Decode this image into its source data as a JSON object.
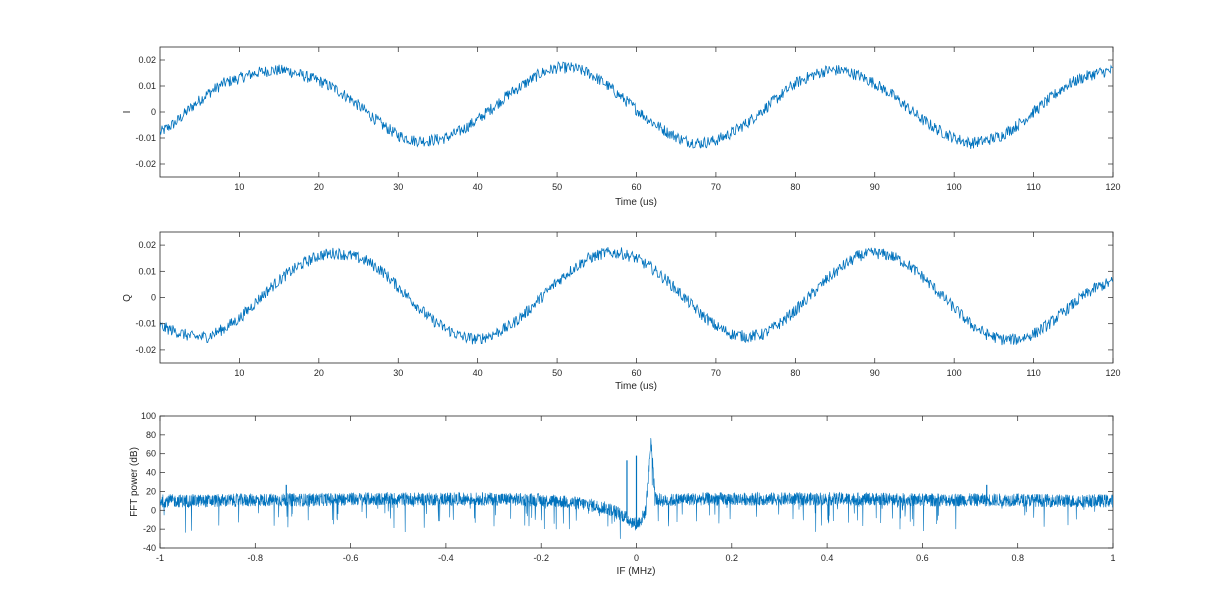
{
  "colors": {
    "background": "#ffffff",
    "axes": "#262626",
    "series": "#0072BD"
  },
  "chart_data": [
    {
      "type": "line",
      "xlabel": "Time (us)",
      "ylabel": "I",
      "xlim": [
        0,
        120
      ],
      "ylim": [
        -0.025,
        0.025
      ],
      "xticks": [
        10,
        20,
        30,
        40,
        50,
        60,
        70,
        80,
        90,
        100,
        110,
        120
      ],
      "xtick_labels": [
        "10",
        "20",
        "30",
        "40",
        "50",
        "60",
        "70",
        "80",
        "90",
        "100",
        "110",
        "120"
      ],
      "yticks": [
        -0.02,
        -0.01,
        0,
        0.01,
        0.02
      ],
      "ytick_labels": [
        "-0.02",
        "-0.01",
        "0",
        "0.01",
        "0.02"
      ],
      "grid": false,
      "series": [
        {
          "x": [
            0,
            2,
            4,
            6,
            8,
            10,
            12,
            14,
            16,
            18,
            20,
            22,
            24,
            26,
            28,
            30,
            32,
            34,
            36,
            38,
            40,
            42,
            44,
            46,
            48,
            50,
            52,
            54,
            56,
            58,
            60,
            62,
            64,
            66,
            68,
            70,
            72,
            74,
            76,
            78,
            80,
            82,
            84,
            86,
            88,
            90,
            92,
            94,
            96,
            98,
            100,
            102,
            104,
            106,
            108,
            110,
            112,
            114,
            116,
            118,
            120
          ],
          "values": [
            -0.008,
            -0.004,
            0.002,
            0.007,
            0.011,
            0.013,
            0.015,
            0.016,
            0.016,
            0.014,
            0.012,
            0.009,
            0.005,
            0.0,
            -0.005,
            -0.009,
            -0.011,
            -0.011,
            -0.01,
            -0.007,
            -0.003,
            0.002,
            0.007,
            0.011,
            0.015,
            0.017,
            0.017,
            0.015,
            0.011,
            0.006,
            0.001,
            -0.004,
            -0.008,
            -0.011,
            -0.012,
            -0.011,
            -0.008,
            -0.004,
            0.001,
            0.006,
            0.011,
            0.014,
            0.016,
            0.016,
            0.014,
            0.011,
            0.007,
            0.002,
            -0.003,
            -0.007,
            -0.01,
            -0.012,
            -0.011,
            -0.009,
            -0.005,
            0.0,
            0.005,
            0.01,
            0.013,
            0.015,
            0.016
          ]
        }
      ]
    },
    {
      "type": "line",
      "xlabel": "Time (us)",
      "ylabel": "Q",
      "xlim": [
        0,
        120
      ],
      "ylim": [
        -0.025,
        0.025
      ],
      "xticks": [
        10,
        20,
        30,
        40,
        50,
        60,
        70,
        80,
        90,
        100,
        110,
        120
      ],
      "xtick_labels": [
        "10",
        "20",
        "30",
        "40",
        "50",
        "60",
        "70",
        "80",
        "90",
        "100",
        "110",
        "120"
      ],
      "yticks": [
        -0.02,
        -0.01,
        0,
        0.01,
        0.02
      ],
      "ytick_labels": [
        "-0.02",
        "-0.01",
        "0",
        "0.01",
        "0.02"
      ],
      "grid": false,
      "series": [
        {
          "x": [
            0,
            2,
            4,
            6,
            8,
            10,
            12,
            14,
            16,
            18,
            20,
            22,
            24,
            26,
            28,
            30,
            32,
            34,
            36,
            38,
            40,
            42,
            44,
            46,
            48,
            50,
            52,
            54,
            56,
            58,
            60,
            62,
            64,
            66,
            68,
            70,
            72,
            74,
            76,
            78,
            80,
            82,
            84,
            86,
            88,
            90,
            92,
            94,
            96,
            98,
            100,
            102,
            104,
            106,
            108,
            110,
            112,
            114,
            116,
            118,
            120
          ],
          "values": [
            -0.011,
            -0.013,
            -0.015,
            -0.015,
            -0.012,
            -0.008,
            -0.002,
            0.004,
            0.009,
            0.013,
            0.016,
            0.017,
            0.016,
            0.014,
            0.01,
            0.004,
            -0.002,
            -0.008,
            -0.012,
            -0.015,
            -0.016,
            -0.014,
            -0.011,
            -0.006,
            0.0,
            0.006,
            0.011,
            0.015,
            0.017,
            0.017,
            0.015,
            0.011,
            0.006,
            0.0,
            -0.006,
            -0.011,
            -0.014,
            -0.015,
            -0.014,
            -0.01,
            -0.005,
            0.001,
            0.007,
            0.012,
            0.016,
            0.017,
            0.016,
            0.013,
            0.008,
            0.002,
            -0.004,
            -0.01,
            -0.014,
            -0.016,
            -0.016,
            -0.014,
            -0.01,
            -0.005,
            0.0,
            0.004,
            0.006
          ]
        }
      ]
    },
    {
      "type": "line",
      "xlabel": "IF (MHz)",
      "ylabel": "FFT power (dB)",
      "xlim": [
        -1,
        1
      ],
      "ylim": [
        -40,
        100
      ],
      "xticks": [
        -1,
        -0.8,
        -0.6,
        -0.4,
        -0.2,
        0,
        0.2,
        0.4,
        0.6,
        0.8,
        1
      ],
      "xtick_labels": [
        "-1",
        "-0.8",
        "-0.6",
        "-0.4",
        "-0.2",
        "0",
        "0.2",
        "0.4",
        "0.6",
        "0.8",
        "1"
      ],
      "yticks": [
        -40,
        -20,
        0,
        20,
        40,
        60,
        80,
        100
      ],
      "ytick_labels": [
        "-40",
        "-20",
        "0",
        "20",
        "40",
        "60",
        "80",
        "100"
      ],
      "grid": false,
      "series": [
        {
          "x": [
            -1.0,
            -0.9,
            -0.8,
            -0.7,
            -0.6,
            -0.5,
            -0.4,
            -0.3,
            -0.2,
            -0.15,
            -0.1,
            -0.07,
            -0.05,
            -0.03,
            -0.01,
            0.0,
            0.01,
            0.02,
            0.03,
            0.04,
            0.06,
            0.1,
            0.2,
            0.3,
            0.4,
            0.5,
            0.6,
            0.7,
            0.8,
            0.9,
            1.0
          ],
          "values": [
            10,
            10,
            11,
            11,
            12,
            12,
            12,
            12,
            11,
            9,
            6,
            3,
            0,
            -5,
            -12,
            -15,
            -10,
            0,
            75,
            12,
            10,
            12,
            12,
            12,
            12,
            12,
            11,
            11,
            11,
            10,
            10
          ]
        }
      ],
      "peaks": [
        {
          "x": -0.02,
          "y": 53
        },
        {
          "x": 0.0,
          "y": 58
        },
        {
          "x": 0.03,
          "y": 75
        },
        {
          "x": -0.735,
          "y": 27
        },
        {
          "x": 0.735,
          "y": 27
        }
      ]
    }
  ]
}
